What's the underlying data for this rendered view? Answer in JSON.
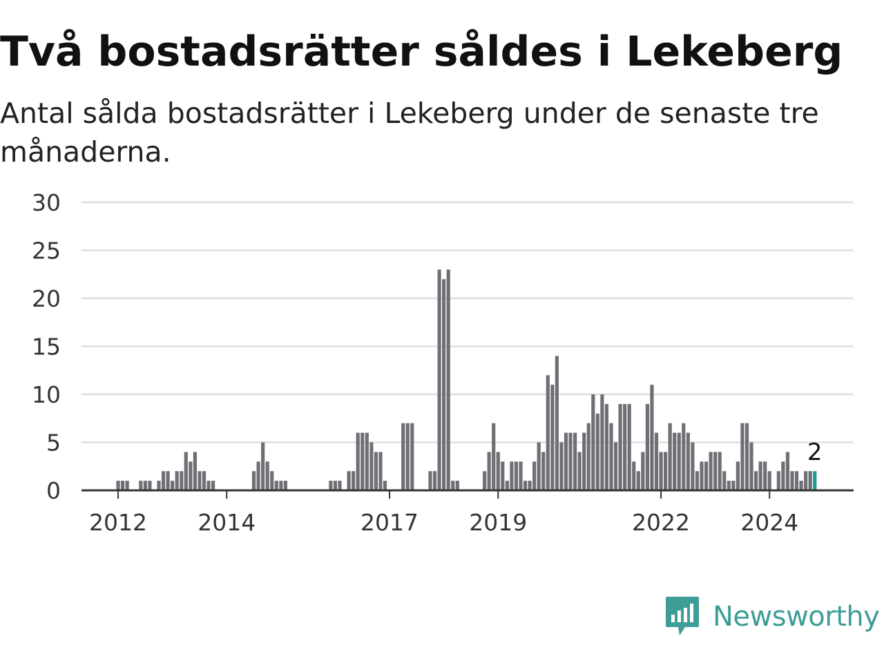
{
  "title": "Två bostadsrätter såldes i Lekeberg",
  "subtitle": "Antal sålda bostadsrätter i Lekeberg under de senaste tre månaderna.",
  "brand": {
    "name": "Newsworthy",
    "icon": "newsworthy-logo-icon",
    "color": "#3e9d96"
  },
  "colors": {
    "bars": "#706f75",
    "highlight": "#1a9d93",
    "grid": "#dddddd",
    "axis": "#333333"
  },
  "chart_data": {
    "type": "bar",
    "title": "",
    "xlabel": "",
    "ylabel": "",
    "ylim": [
      0,
      30
    ],
    "yticks": [
      0,
      5,
      10,
      15,
      20,
      25,
      30
    ],
    "x_axis": "date",
    "grid": "horizontal",
    "xtick_labels": [
      {
        "label": "2012",
        "date": "2012-01"
      },
      {
        "label": "2014",
        "date": "2014-01"
      },
      {
        "label": "2017",
        "date": "2017-01"
      },
      {
        "label": "2019",
        "date": "2019-01"
      },
      {
        "label": "2022",
        "date": "2022-01"
      },
      {
        "label": "2024",
        "date": "2024-01"
      }
    ],
    "annotation": {
      "text": "2",
      "date": "2024-11"
    },
    "highlight": "2024-11",
    "series": [
      {
        "values": [
          [
            "2011-12",
            0
          ],
          [
            "2012-01",
            1
          ],
          [
            "2012-02",
            1
          ],
          [
            "2012-03",
            1
          ],
          [
            "2012-04",
            0
          ],
          [
            "2012-05",
            0
          ],
          [
            "2012-06",
            1
          ],
          [
            "2012-07",
            1
          ],
          [
            "2012-08",
            1
          ],
          [
            "2012-09",
            0
          ],
          [
            "2012-10",
            1
          ],
          [
            "2012-11",
            2
          ],
          [
            "2012-12",
            2
          ],
          [
            "2013-01",
            1
          ],
          [
            "2013-02",
            2
          ],
          [
            "2013-03",
            2
          ],
          [
            "2013-04",
            4
          ],
          [
            "2013-05",
            3
          ],
          [
            "2013-06",
            4
          ],
          [
            "2013-07",
            2
          ],
          [
            "2013-08",
            2
          ],
          [
            "2013-09",
            1
          ],
          [
            "2013-10",
            1
          ],
          [
            "2013-11",
            0
          ],
          [
            "2013-12",
            0
          ],
          [
            "2014-01",
            0
          ],
          [
            "2014-02",
            0
          ],
          [
            "2014-03",
            0
          ],
          [
            "2014-04",
            0
          ],
          [
            "2014-05",
            0
          ],
          [
            "2014-06",
            0
          ],
          [
            "2014-07",
            2
          ],
          [
            "2014-08",
            3
          ],
          [
            "2014-09",
            5
          ],
          [
            "2014-10",
            3
          ],
          [
            "2014-11",
            2
          ],
          [
            "2014-12",
            1
          ],
          [
            "2015-01",
            1
          ],
          [
            "2015-02",
            1
          ],
          [
            "2015-03",
            0
          ],
          [
            "2015-04",
            0
          ],
          [
            "2015-05",
            0
          ],
          [
            "2015-06",
            0
          ],
          [
            "2015-07",
            0
          ],
          [
            "2015-08",
            0
          ],
          [
            "2015-09",
            0
          ],
          [
            "2015-10",
            0
          ],
          [
            "2015-11",
            0
          ],
          [
            "2015-12",
            1
          ],
          [
            "2016-01",
            1
          ],
          [
            "2016-02",
            1
          ],
          [
            "2016-03",
            0
          ],
          [
            "2016-04",
            2
          ],
          [
            "2016-05",
            2
          ],
          [
            "2016-06",
            6
          ],
          [
            "2016-07",
            6
          ],
          [
            "2016-08",
            6
          ],
          [
            "2016-09",
            5
          ],
          [
            "2016-10",
            4
          ],
          [
            "2016-11",
            4
          ],
          [
            "2016-12",
            1
          ],
          [
            "2017-01",
            0
          ],
          [
            "2017-02",
            0
          ],
          [
            "2017-03",
            0
          ],
          [
            "2017-04",
            7
          ],
          [
            "2017-05",
            7
          ],
          [
            "2017-06",
            7
          ],
          [
            "2017-07",
            0
          ],
          [
            "2017-08",
            0
          ],
          [
            "2017-09",
            0
          ],
          [
            "2017-10",
            2
          ],
          [
            "2017-11",
            2
          ],
          [
            "2017-12",
            23
          ],
          [
            "2018-01",
            22
          ],
          [
            "2018-02",
            23
          ],
          [
            "2018-03",
            1
          ],
          [
            "2018-04",
            1
          ],
          [
            "2018-05",
            0
          ],
          [
            "2018-06",
            0
          ],
          [
            "2018-07",
            0
          ],
          [
            "2018-08",
            0
          ],
          [
            "2018-09",
            0
          ],
          [
            "2018-10",
            2
          ],
          [
            "2018-11",
            4
          ],
          [
            "2018-12",
            7
          ],
          [
            "2019-01",
            4
          ],
          [
            "2019-02",
            3
          ],
          [
            "2019-03",
            1
          ],
          [
            "2019-04",
            3
          ],
          [
            "2019-05",
            3
          ],
          [
            "2019-06",
            3
          ],
          [
            "2019-07",
            1
          ],
          [
            "2019-08",
            1
          ],
          [
            "2019-09",
            3
          ],
          [
            "2019-10",
            5
          ],
          [
            "2019-11",
            4
          ],
          [
            "2019-12",
            12
          ],
          [
            "2020-01",
            11
          ],
          [
            "2020-02",
            14
          ],
          [
            "2020-03",
            5
          ],
          [
            "2020-04",
            6
          ],
          [
            "2020-05",
            6
          ],
          [
            "2020-06",
            6
          ],
          [
            "2020-07",
            4
          ],
          [
            "2020-08",
            6
          ],
          [
            "2020-09",
            7
          ],
          [
            "2020-10",
            10
          ],
          [
            "2020-11",
            8
          ],
          [
            "2020-12",
            10
          ],
          [
            "2021-01",
            9
          ],
          [
            "2021-02",
            7
          ],
          [
            "2021-03",
            5
          ],
          [
            "2021-04",
            9
          ],
          [
            "2021-05",
            9
          ],
          [
            "2021-06",
            9
          ],
          [
            "2021-07",
            3
          ],
          [
            "2021-08",
            2
          ],
          [
            "2021-09",
            4
          ],
          [
            "2021-10",
            9
          ],
          [
            "2021-11",
            11
          ],
          [
            "2021-12",
            6
          ],
          [
            "2022-01",
            4
          ],
          [
            "2022-02",
            4
          ],
          [
            "2022-03",
            7
          ],
          [
            "2022-04",
            6
          ],
          [
            "2022-05",
            6
          ],
          [
            "2022-06",
            7
          ],
          [
            "2022-07",
            6
          ],
          [
            "2022-08",
            5
          ],
          [
            "2022-09",
            2
          ],
          [
            "2022-10",
            3
          ],
          [
            "2022-11",
            3
          ],
          [
            "2022-12",
            4
          ],
          [
            "2023-01",
            4
          ],
          [
            "2023-02",
            4
          ],
          [
            "2023-03",
            2
          ],
          [
            "2023-04",
            1
          ],
          [
            "2023-05",
            1
          ],
          [
            "2023-06",
            3
          ],
          [
            "2023-07",
            7
          ],
          [
            "2023-08",
            7
          ],
          [
            "2023-09",
            5
          ],
          [
            "2023-10",
            2
          ],
          [
            "2023-11",
            3
          ],
          [
            "2023-12",
            3
          ],
          [
            "2024-01",
            2
          ],
          [
            "2024-02",
            0
          ],
          [
            "2024-03",
            2
          ],
          [
            "2024-04",
            3
          ],
          [
            "2024-05",
            4
          ],
          [
            "2024-06",
            2
          ],
          [
            "2024-07",
            2
          ],
          [
            "2024-08",
            1
          ],
          [
            "2024-09",
            2
          ],
          [
            "2024-10",
            2
          ],
          [
            "2024-11",
            2
          ]
        ]
      }
    ]
  }
}
